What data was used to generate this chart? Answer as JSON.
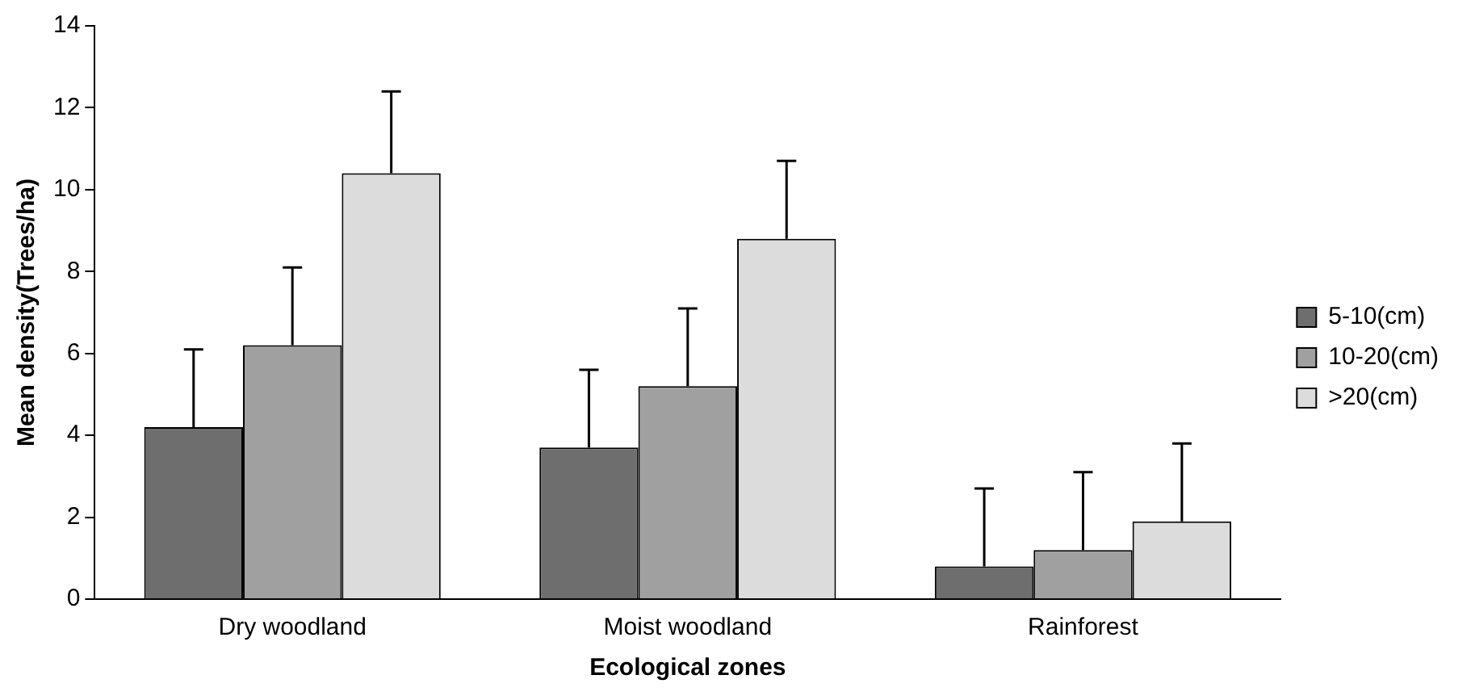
{
  "chart_data": {
    "type": "bar",
    "xlabel": "Ecological zones",
    "ylabel": "Mean density(Trees/ha)",
    "categories": [
      "Dry woodland",
      "Moist woodland",
      "Rainforest"
    ],
    "series": [
      {
        "name": "5-10(cm)",
        "color": "#6e6e6e",
        "values": [
          4.2,
          3.7,
          0.8
        ],
        "errors": [
          [
            4.2,
            6.1
          ],
          [
            3.7,
            5.6
          ],
          [
            0.8,
            2.7
          ]
        ]
      },
      {
        "name": "10-20(cm)",
        "color": "#a0a0a0",
        "values": [
          6.2,
          5.2,
          1.2
        ],
        "errors": [
          [
            6.2,
            8.1
          ],
          [
            5.2,
            7.1
          ],
          [
            1.2,
            3.1
          ]
        ]
      },
      {
        "name": ">20(cm)",
        "color": "#dcdcdc",
        "values": [
          10.4,
          8.8,
          1.9
        ],
        "errors": [
          [
            10.4,
            12.4
          ],
          [
            8.8,
            10.7
          ],
          [
            1.9,
            3.8
          ]
        ]
      }
    ],
    "ylim": [
      0,
      14
    ],
    "yticks": [
      0,
      2,
      4,
      6,
      8,
      10,
      12,
      14
    ],
    "grid": false,
    "legend": "right"
  }
}
